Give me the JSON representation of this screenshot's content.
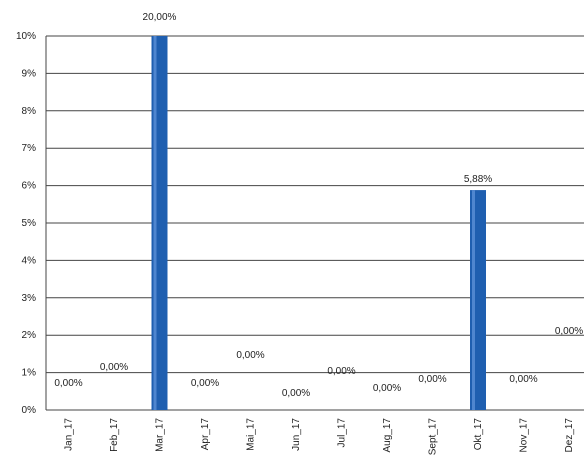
{
  "chart_data": {
    "type": "bar",
    "title": "",
    "xlabel": "",
    "ylabel": "",
    "categories": [
      "Jan_17",
      "Feb_17",
      "Mar_17",
      "Apr_17",
      "Mai_17",
      "Jun_17",
      "Jul_17",
      "Aug_17",
      "Sept_17",
      "Okt_17",
      "Nov_17",
      "Dez_17"
    ],
    "values": [
      0.0,
      0.0,
      20.0,
      0.0,
      0.0,
      0.0,
      0.0,
      0.0,
      0.0,
      5.88,
      0.0,
      0.0
    ],
    "data_labels": [
      "0,00%",
      "0,00%",
      "20,00%",
      "0,00%",
      "0,00%",
      "0,00%",
      "0,00%",
      "0,00%",
      "0,00%",
      "5,88%",
      "0,00%",
      "0,00%"
    ],
    "ylim": [
      0,
      10
    ],
    "yticks": [
      "0%",
      "1%",
      "2%",
      "3%",
      "4%",
      "5%",
      "6%",
      "7%",
      "8%",
      "9%",
      "10%"
    ],
    "grid": true,
    "legend": "none",
    "bar_color": "#1f5fb0"
  }
}
